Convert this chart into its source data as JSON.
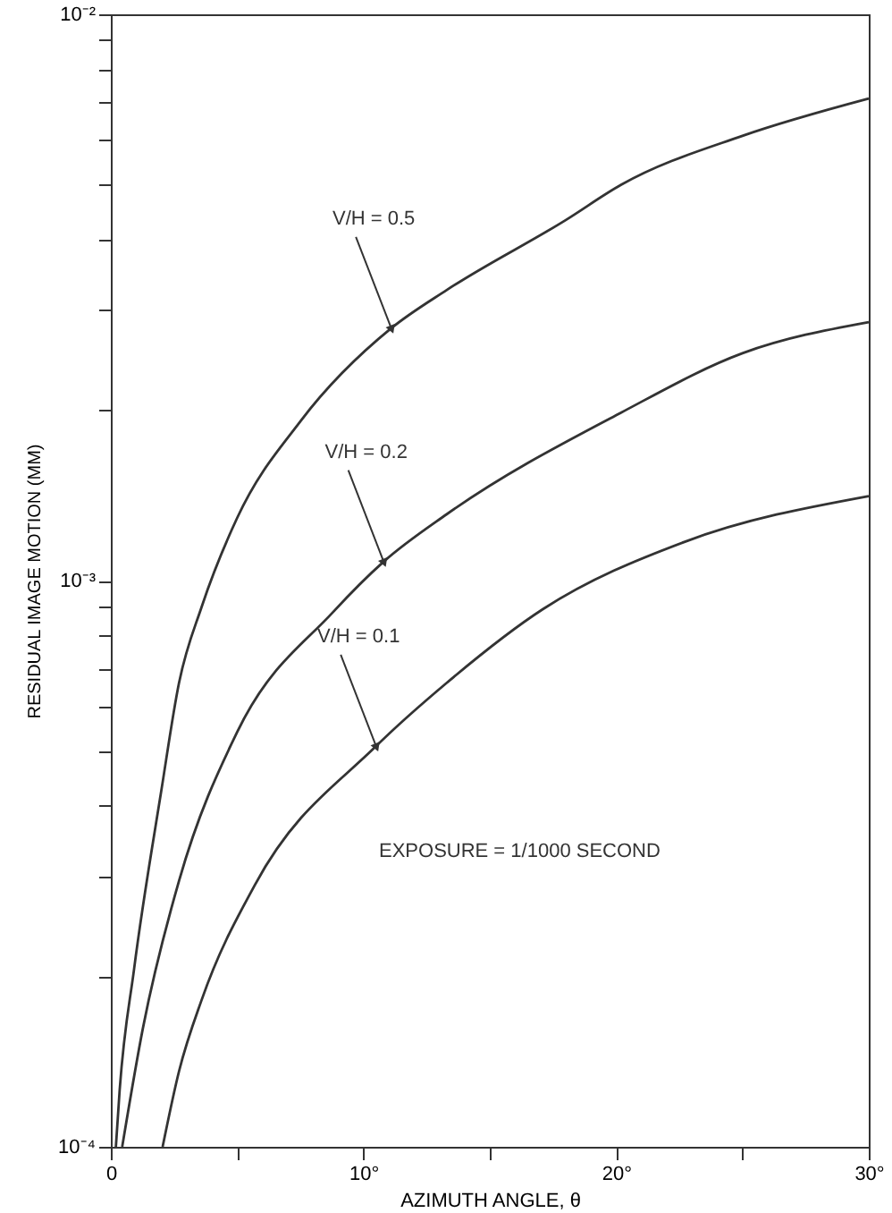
{
  "chart_data": {
    "type": "line",
    "xlabel": "AZIMUTH ANGLE, θ",
    "ylabel": "RESIDUAL IMAGE MOTION (MM)",
    "log": "y",
    "xlim": [
      0,
      30
    ],
    "ylim": [
      0.0001,
      0.01
    ],
    "xticks": [
      {
        "value": 0,
        "label": "0"
      },
      {
        "value": 5,
        "label": null
      },
      {
        "value": 10,
        "label": "10°"
      },
      {
        "value": 15,
        "label": null
      },
      {
        "value": 20,
        "label": "20°"
      },
      {
        "value": 25,
        "label": null
      },
      {
        "value": 30,
        "label": "30°"
      }
    ],
    "yticks": [
      {
        "value": 0.0001,
        "label": "10⁻⁴"
      },
      {
        "value": 0.0002,
        "label": null
      },
      {
        "value": 0.0003,
        "label": null
      },
      {
        "value": 0.0004,
        "label": null
      },
      {
        "value": 0.0005,
        "label": null
      },
      {
        "value": 0.0006,
        "label": null
      },
      {
        "value": 0.0007,
        "label": null
      },
      {
        "value": 0.0008,
        "label": null
      },
      {
        "value": 0.0009,
        "label": null
      },
      {
        "value": 0.001,
        "label": "10⁻³"
      },
      {
        "value": 0.002,
        "label": null
      },
      {
        "value": 0.003,
        "label": null
      },
      {
        "value": 0.004,
        "label": null
      },
      {
        "value": 0.005,
        "label": null
      },
      {
        "value": 0.006,
        "label": null
      },
      {
        "value": 0.007,
        "label": null
      },
      {
        "value": 0.008,
        "label": null
      },
      {
        "value": 0.009,
        "label": null
      },
      {
        "value": 0.01,
        "label": "10⁻²"
      }
    ],
    "grid": false,
    "marker": "none",
    "line_style": "solid",
    "series": [
      {
        "color": "#333333",
        "x": [
          0.2,
          0.35,
          0.92,
          2.0,
          2.7,
          3.6,
          5,
          7.5,
          11.1,
          13.3,
          18,
          20.2,
          25,
          30
        ],
        "values": [
          0.0001,
          0.000126,
          0.000206,
          0.000426,
          0.00066,
          0.0009,
          0.00129,
          0.00191,
          0.00279,
          0.00326,
          0.00433,
          0.005,
          0.0061,
          0.0071
        ]
      },
      {
        "color": "#333333",
        "x": [
          0.45,
          1.27,
          2.7,
          5,
          8.8,
          10.8,
          13.3,
          20.2,
          25,
          30
        ],
        "values": [
          0.0001,
          0.000162,
          0.000295,
          0.00054,
          0.00088,
          0.00108,
          0.00131,
          0.00198,
          0.00252,
          0.00286
        ]
      },
      {
        "color": "#333333",
        "x": [
          2.05,
          2.7,
          3.6,
          5.7,
          10.5,
          13.3,
          17.1,
          22.7,
          30
        ],
        "values": [
          0.0001,
          0.000136,
          0.000182,
          0.00029,
          0.00051,
          0.00066,
          0.00089,
          0.00117,
          0.00141
        ]
      }
    ],
    "annotations": [
      {
        "text": "V/H = 0.5",
        "x": 11.1,
        "y": 0.00279
      },
      {
        "text": "V/H = 0.2",
        "x": 10.8,
        "y": 0.00108
      },
      {
        "text": "V/H = 0.1",
        "x": 10.5,
        "y": 0.00051
      },
      "EXPOSURE = 1/1000 SECOND"
    ]
  }
}
